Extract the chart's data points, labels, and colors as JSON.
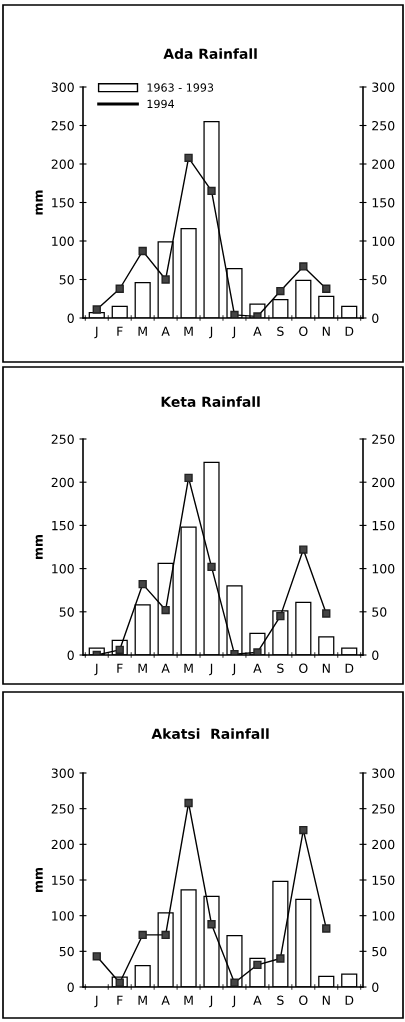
{
  "chart_data": [
    {
      "type": "bar",
      "title": "Ada Rainfall",
      "ylabel": "mm",
      "categories": [
        "J",
        "F",
        "M",
        "A",
        "M",
        "J",
        "J",
        "A",
        "S",
        "O",
        "N",
        "D"
      ],
      "ylim": [
        0,
        300
      ],
      "yticks": [
        0,
        50,
        100,
        150,
        200,
        250,
        300
      ],
      "y2lim": [
        0,
        300
      ],
      "y2ticks": [
        0,
        50,
        100,
        150,
        200,
        250,
        300
      ],
      "grid": false,
      "legend": "top left",
      "marker": "square",
      "series": [
        {
          "name": "1963 - 1993",
          "color": "#ffffff",
          "values": [
            7,
            15,
            46,
            99,
            116,
            255,
            64,
            18,
            24,
            49,
            28,
            15
          ]
        },
        {
          "name": "1994",
          "type": "line",
          "color": "#000000",
          "values": [
            11,
            38,
            87,
            50,
            208,
            165,
            4,
            2,
            35,
            67,
            38,
            null
          ]
        }
      ]
    },
    {
      "type": "bar",
      "title": "Keta Rainfall",
      "ylabel": "mm",
      "categories": [
        "J",
        "F",
        "M",
        "A",
        "M",
        "J",
        "J",
        "A",
        "S",
        "O",
        "N",
        "D"
      ],
      "ylim": [
        0,
        250
      ],
      "yticks": [
        0,
        50,
        100,
        150,
        200,
        250
      ],
      "y2lim": [
        0,
        250
      ],
      "y2ticks": [
        0,
        50,
        100,
        150,
        200,
        250
      ],
      "grid": false,
      "legend": false,
      "marker": "square",
      "series": [
        {
          "color": "#ffffff",
          "values": [
            8,
            17,
            58,
            106,
            148,
            223,
            80,
            25,
            51,
            61,
            21,
            8
          ]
        },
        {
          "type": "line",
          "color": "#000000",
          "values": [
            0,
            6,
            82,
            52,
            205,
            102,
            1,
            3,
            45,
            122,
            48,
            null
          ]
        }
      ]
    },
    {
      "type": "bar",
      "title": "Akatsi  Rainfall",
      "ylabel": "mm",
      "categories": [
        "J",
        "F",
        "M",
        "A",
        "M",
        "J",
        "J",
        "A",
        "S",
        "O",
        "N",
        "D"
      ],
      "ylim": [
        0,
        300
      ],
      "yticks": [
        0,
        50,
        100,
        150,
        200,
        250,
        300
      ],
      "y2lim": [
        0,
        300
      ],
      "y2ticks": [
        0,
        50,
        100,
        150,
        200,
        250,
        300
      ],
      "grid": false,
      "legend": false,
      "marker": "square",
      "series": [
        {
          "color": "#ffffff",
          "values": [
            null,
            14,
            30,
            104,
            136,
            127,
            72,
            40,
            148,
            123,
            15,
            18
          ]
        },
        {
          "type": "line",
          "color": "#000000",
          "values": [
            43,
            6,
            73,
            73,
            258,
            88,
            6,
            31,
            40,
            220,
            82,
            null
          ]
        }
      ]
    }
  ]
}
